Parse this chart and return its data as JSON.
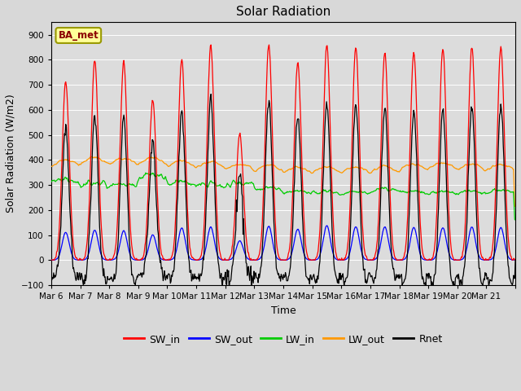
{
  "title": "Solar Radiation",
  "xlabel": "Time",
  "ylabel": "Solar Radiation (W/m2)",
  "ylim": [
    -100,
    950
  ],
  "yticks": [
    -100,
    0,
    100,
    200,
    300,
    400,
    500,
    600,
    700,
    800,
    900
  ],
  "station_label": "BA_met",
  "colors": {
    "SW_in": "#ff0000",
    "SW_out": "#0000ff",
    "LW_in": "#00cc00",
    "LW_out": "#ff9900",
    "Rnet": "#000000"
  },
  "plot_bg_color": "#dcdcdc",
  "fig_bg_color": "#d8d8d8",
  "n_days": 16,
  "start_day": 6,
  "SW_in_peaks": [
    715,
    800,
    790,
    640,
    800,
    855,
    505,
    860,
    790,
    860,
    850,
    830,
    830,
    845,
    850,
    850
  ]
}
